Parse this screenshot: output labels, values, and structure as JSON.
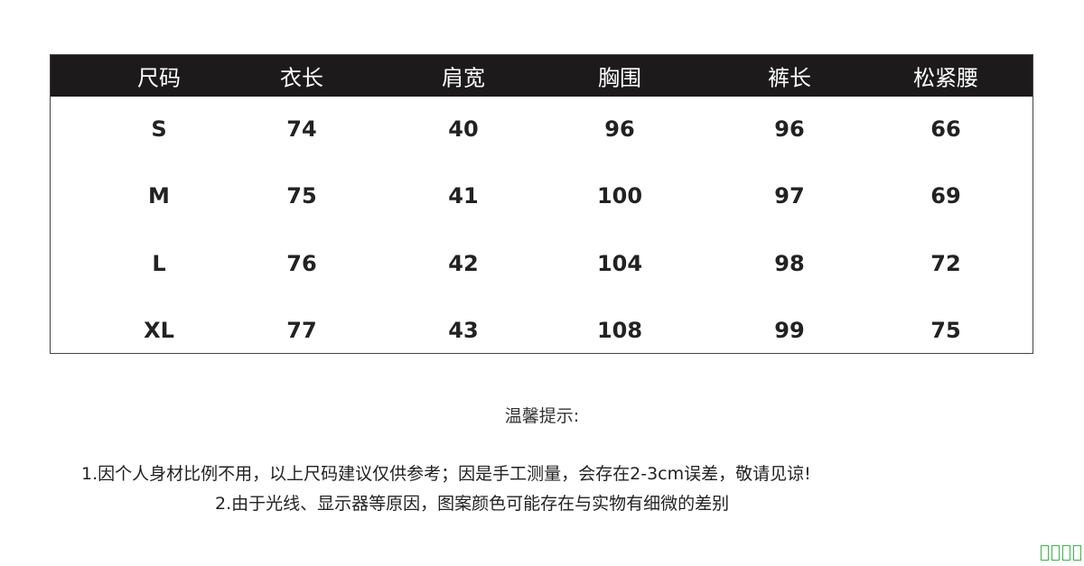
{
  "size_table": {
    "headers": [
      "尺码",
      "衣长",
      "肩宽",
      "胸围",
      "裤长",
      "松紧腰"
    ],
    "rows": [
      [
        "S",
        "74",
        "40",
        "96",
        "96",
        "66"
      ],
      [
        "M",
        "75",
        "41",
        "100",
        "97",
        "69"
      ],
      [
        "L",
        "76",
        "42",
        "104",
        "98",
        "72"
      ],
      [
        "XL",
        "77",
        "43",
        "108",
        "99",
        "75"
      ]
    ]
  },
  "tips": {
    "title": "温馨提示:",
    "notes": [
      "1.因个人身材比例不用，以上尺码建议仅供参考；因是手工测量，会存在2-3cm误差，敬请见谅!",
      "2.由于光线、显示器等原因，图案颜色可能存在与实物有细微的差别"
    ]
  },
  "colors": {
    "header_bg": "#1c1a1a",
    "watermark": "#3cb44a"
  }
}
